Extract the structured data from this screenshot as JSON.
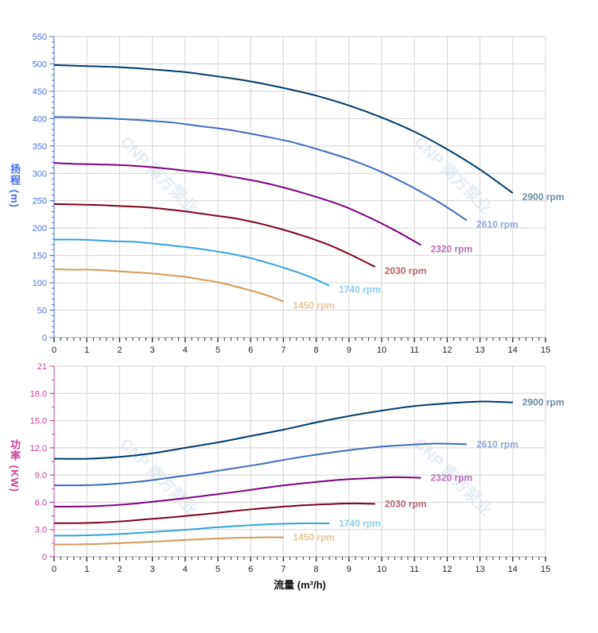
{
  "watermark": "CNP 南方泵业",
  "chart_data": [
    {
      "type": "line",
      "title": "",
      "xlabel": "",
      "ylabel_chars": [
        "扬",
        "程",
        "(",
        "m",
        ")"
      ],
      "ylabel": "扬程 (m)",
      "xlim": [
        0,
        15
      ],
      "ylim": [
        0,
        550
      ],
      "xticks": [
        "0",
        "1",
        "2",
        "3",
        "4",
        "5",
        "6",
        "7",
        "8",
        "9",
        "10",
        "11",
        "12",
        "13",
        "14",
        "15"
      ],
      "yticks": [
        "0",
        "50",
        "100",
        "150",
        "200",
        "250",
        "300",
        "350",
        "400",
        "450",
        "500",
        "550"
      ],
      "ytick_values": [
        0,
        50,
        100,
        150,
        200,
        250,
        300,
        350,
        400,
        450,
        500,
        550
      ],
      "grid": true,
      "axis_color": "#4a6ee0",
      "series": [
        {
          "name": "2900 rpm",
          "color": "#003a6e",
          "label_color": "#6e8ba8",
          "x": [
            0,
            1,
            2,
            3,
            4,
            5,
            6,
            7,
            8,
            9,
            10,
            11,
            12,
            13,
            14
          ],
          "y": [
            498,
            496,
            494,
            490,
            485,
            477,
            468,
            456,
            442,
            424,
            402,
            376,
            344,
            307,
            264
          ]
        },
        {
          "name": "2610 rpm",
          "color": "#3f6bbf",
          "label_color": "#8ea5dc",
          "x": [
            0,
            0.9,
            1.8,
            2.7,
            3.6,
            4.5,
            5.4,
            6.3,
            7.2,
            8.1,
            9,
            9.9,
            10.8,
            11.7,
            12.6
          ],
          "y": [
            403,
            402,
            400,
            397,
            393,
            386,
            379,
            369,
            358,
            343,
            326,
            305,
            279,
            249,
            214
          ]
        },
        {
          "name": "2320 rpm",
          "color": "#800080",
          "label_color": "#b86cb8",
          "x": [
            0,
            0.8,
            1.6,
            2.4,
            3.2,
            4,
            4.8,
            5.6,
            6.4,
            7.2,
            8,
            8.8,
            9.6,
            10.4,
            11.2
          ],
          "y": [
            319,
            317,
            316,
            314,
            310,
            305,
            300,
            292,
            283,
            271,
            257,
            241,
            220,
            196,
            169
          ]
        },
        {
          "name": "2030 rpm",
          "color": "#800020",
          "label_color": "#b4656f",
          "x": [
            0,
            0.7,
            1.4,
            2.1,
            2.8,
            3.5,
            4.2,
            4.9,
            5.6,
            6.3,
            7,
            7.7,
            8.4,
            9.1,
            9.8
          ],
          "y": [
            244,
            243,
            242,
            240,
            238,
            234,
            229,
            223,
            217,
            208,
            197,
            184,
            169,
            150,
            129
          ]
        },
        {
          "name": "1740 rpm",
          "color": "#2fa4e0",
          "label_color": "#8ccdf0",
          "x": [
            0,
            0.6,
            1.2,
            1.8,
            2.4,
            3,
            3.6,
            4.2,
            4.8,
            5.4,
            6,
            6.6,
            7.2,
            7.8,
            8.4
          ],
          "y": [
            179,
            179,
            178,
            176,
            175,
            172,
            168,
            164,
            159,
            153,
            145,
            135,
            124,
            111,
            95
          ]
        },
        {
          "name": "1450 rpm",
          "color": "#d49a55",
          "label_color": "#e8c495",
          "x": [
            0,
            0.5,
            1,
            1.5,
            2,
            2.5,
            3,
            3.5,
            4,
            4.5,
            5,
            5.5,
            6,
            6.5,
            7
          ],
          "y": [
            125,
            124,
            124,
            123,
            121,
            119,
            117,
            114,
            111,
            106,
            101,
            94,
            86,
            77,
            66
          ]
        }
      ]
    },
    {
      "type": "line",
      "title": "",
      "xlabel": "流量 (m³/h)",
      "ylabel_chars": [
        "功",
        "率",
        "(",
        "K",
        "W",
        ")"
      ],
      "ylabel": "功率 (KW)",
      "xlim": [
        0,
        15
      ],
      "ylim": [
        0,
        21
      ],
      "xticks": [
        "0",
        "1",
        "2",
        "3",
        "4",
        "5",
        "6",
        "7",
        "8",
        "9",
        "10",
        "11",
        "12",
        "13",
        "14",
        "15"
      ],
      "yticks": [
        "0",
        "3.0",
        "6.0",
        "9.0",
        "12.0",
        "15.0",
        "18.0",
        "21"
      ],
      "ytick_values": [
        0,
        3,
        6,
        9,
        12,
        15,
        18,
        21
      ],
      "grid": true,
      "axis_color": "#d0409a",
      "series": [
        {
          "name": "2900 rpm",
          "color": "#003a6e",
          "label_color": "#6e8ba8",
          "x": [
            0,
            1,
            2,
            3,
            4,
            5,
            6,
            7,
            8,
            9,
            10,
            11,
            12,
            13,
            14
          ],
          "y": [
            10.8,
            10.8,
            11.0,
            11.4,
            12.0,
            12.6,
            13.3,
            14.0,
            14.8,
            15.5,
            16.1,
            16.6,
            16.9,
            17.1,
            17.0
          ]
        },
        {
          "name": "2610 rpm",
          "color": "#3f6bbf",
          "label_color": "#8ea5dc",
          "x": [
            0,
            0.9,
            1.8,
            2.7,
            3.6,
            4.5,
            5.4,
            6.3,
            7.2,
            8.1,
            9,
            9.9,
            10.8,
            11.7,
            12.6
          ],
          "y": [
            7.87,
            7.87,
            8.02,
            8.31,
            8.75,
            9.19,
            9.7,
            10.21,
            10.79,
            11.3,
            11.74,
            12.1,
            12.32,
            12.47,
            12.39
          ]
        },
        {
          "name": "2320 rpm",
          "color": "#800080",
          "label_color": "#b86cb8",
          "x": [
            0,
            0.8,
            1.6,
            2.4,
            3.2,
            4,
            4.8,
            5.6,
            6.4,
            7.2,
            8,
            8.8,
            9.6,
            10.4,
            11.2
          ],
          "y": [
            5.53,
            5.53,
            5.63,
            5.84,
            6.14,
            6.45,
            6.81,
            7.17,
            7.58,
            7.94,
            8.24,
            8.5,
            8.65,
            8.76,
            8.7
          ]
        },
        {
          "name": "2030 rpm",
          "color": "#800020",
          "label_color": "#b4656f",
          "x": [
            0,
            0.7,
            1.4,
            2.1,
            2.8,
            3.5,
            4.2,
            4.9,
            5.6,
            6.3,
            7,
            7.7,
            8.4,
            9.1,
            9.8
          ],
          "y": [
            3.7,
            3.7,
            3.77,
            3.91,
            4.12,
            4.32,
            4.56,
            4.8,
            5.08,
            5.32,
            5.52,
            5.69,
            5.8,
            5.87,
            5.83
          ]
        },
        {
          "name": "1740 rpm",
          "color": "#2fa4e0",
          "label_color": "#8ccdf0",
          "x": [
            0,
            0.6,
            1.2,
            1.8,
            2.4,
            3,
            3.6,
            4.2,
            4.8,
            5.4,
            6,
            6.6,
            7.2,
            7.8,
            8.4
          ],
          "y": [
            2.33,
            2.33,
            2.38,
            2.46,
            2.59,
            2.72,
            2.87,
            3.02,
            3.2,
            3.35,
            3.48,
            3.59,
            3.65,
            3.69,
            3.67
          ]
        },
        {
          "name": "1450 rpm",
          "color": "#d49a55",
          "label_color": "#e8c495",
          "x": [
            0,
            0.5,
            1,
            1.5,
            2,
            2.5,
            3,
            3.5,
            4,
            4.5,
            5,
            5.5,
            6,
            6.5,
            7
          ],
          "y": [
            1.35,
            1.35,
            1.38,
            1.43,
            1.5,
            1.58,
            1.66,
            1.75,
            1.85,
            1.94,
            2.01,
            2.08,
            2.11,
            2.14,
            2.13
          ]
        }
      ]
    }
  ]
}
